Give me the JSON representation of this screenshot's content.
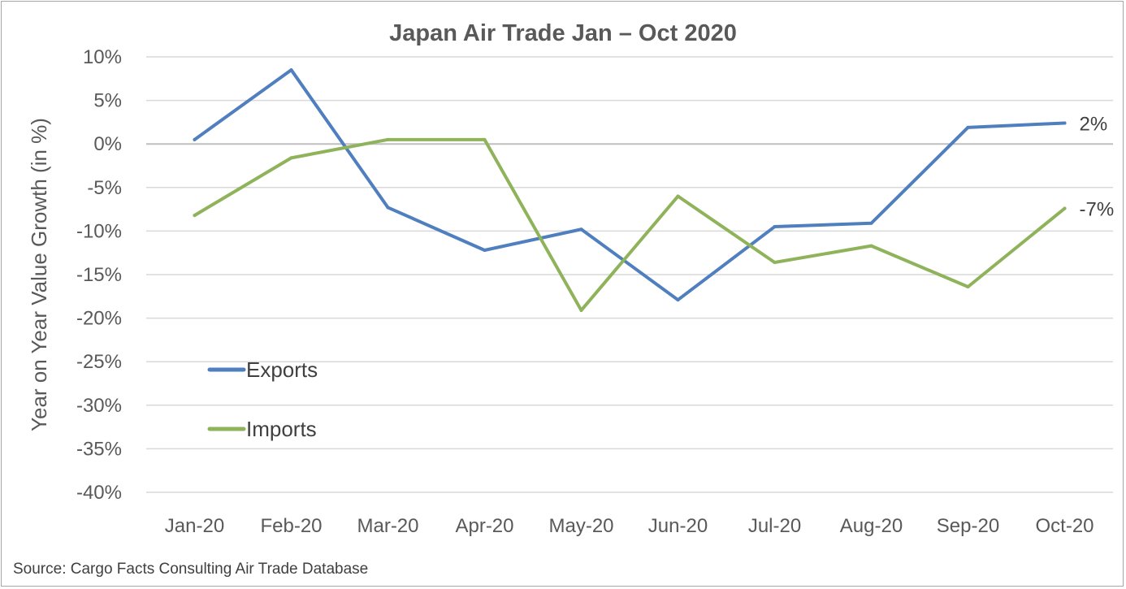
{
  "chart_data": {
    "type": "line",
    "title": "Japan Air Trade Jan – Oct 2020",
    "ylabel": "Year on Year Value Growth (in %)",
    "xlabel": "",
    "categories": [
      "Jan-20",
      "Feb-20",
      "Mar-20",
      "Apr-20",
      "May-20",
      "Jun-20",
      "Jul-20",
      "Aug-20",
      "Sep-20",
      "Oct-20"
    ],
    "ylim": [
      -40,
      10
    ],
    "yticks": [
      10,
      5,
      0,
      -5,
      -10,
      -15,
      -20,
      -25,
      -30,
      -35,
      -40
    ],
    "ytick_labels": [
      "10%",
      "5%",
      "0%",
      "-5%",
      "-10%",
      "-15%",
      "-20%",
      "-25%",
      "-30%",
      "-35%",
      "-40%"
    ],
    "grid": true,
    "legend": "lower-left",
    "series": [
      {
        "name": "Exports",
        "color": "#4f7fbf",
        "values": [
          0.5,
          8.5,
          -7.3,
          -12.2,
          -9.8,
          -17.9,
          -9.5,
          -9.1,
          1.9,
          2.4
        ],
        "end_label": "2%"
      },
      {
        "name": "Imports",
        "color": "#8fb35a",
        "values": [
          -8.2,
          -1.6,
          0.5,
          0.5,
          -19.1,
          -6.0,
          -13.6,
          -11.7,
          -16.4,
          -7.4
        ],
        "end_label": "-7%"
      }
    ],
    "source": "Source: Cargo Facts Consulting Air Trade Database"
  }
}
